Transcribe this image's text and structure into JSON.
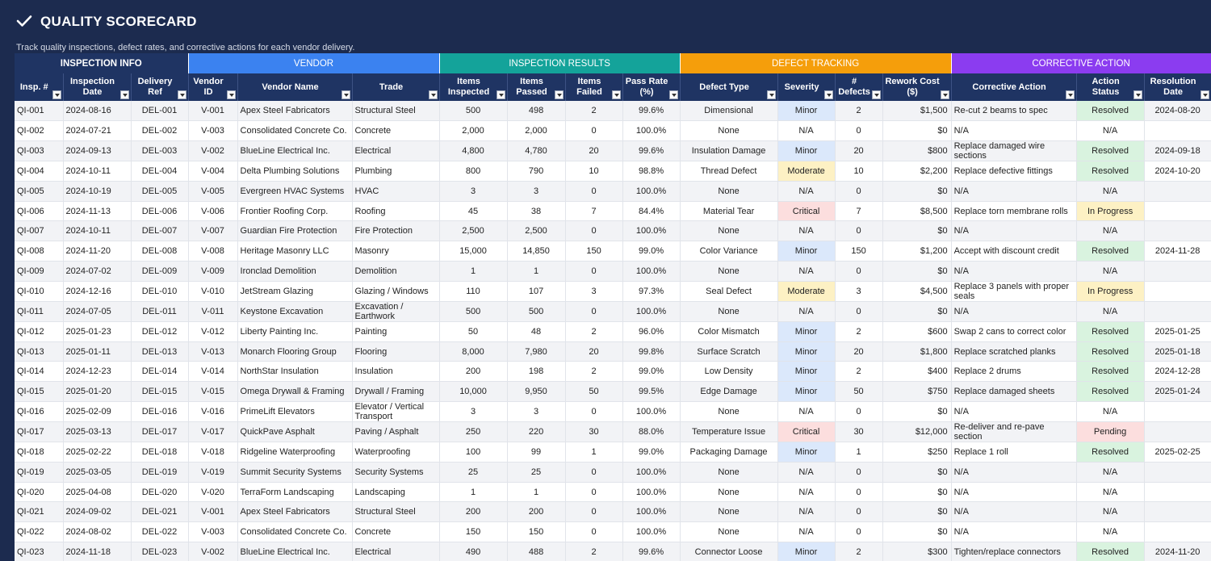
{
  "header": {
    "title": "QUALITY SCORECARD",
    "subtitle": "Track quality inspections, defect rates, and corrective actions for each vendor delivery."
  },
  "groups": [
    {
      "label": "INSPECTION INFO",
      "span": 3,
      "cls": "g-info"
    },
    {
      "label": "VENDOR",
      "span": 3,
      "cls": "g-vendor"
    },
    {
      "label": "INSPECTION RESULTS",
      "span": 4,
      "cls": "g-results"
    },
    {
      "label": "DEFECT TRACKING",
      "span": 4,
      "cls": "g-defect"
    },
    {
      "label": "CORRECTIVE ACTION",
      "span": 3,
      "cls": "g-action"
    }
  ],
  "columns": [
    {
      "key": "id",
      "label": "Insp. #",
      "align": "l"
    },
    {
      "key": "date",
      "label": "Inspection Date",
      "align": "l"
    },
    {
      "key": "del",
      "label": "Delivery Ref",
      "align": "c"
    },
    {
      "key": "vid",
      "label": "Vendor ID",
      "align": "c"
    },
    {
      "key": "vendor",
      "label": "Vendor Name",
      "align": "l"
    },
    {
      "key": "trade",
      "label": "Trade",
      "align": "l"
    },
    {
      "key": "insp",
      "label": "Items Inspected",
      "align": "c"
    },
    {
      "key": "passed",
      "label": "Items Passed",
      "align": "c"
    },
    {
      "key": "failed",
      "label": "Items Failed",
      "align": "c"
    },
    {
      "key": "rate",
      "label": "Pass Rate (%)",
      "align": "c"
    },
    {
      "key": "dtype",
      "label": "Defect Type",
      "align": "c"
    },
    {
      "key": "sev",
      "label": "Severity",
      "align": "c"
    },
    {
      "key": "ndef",
      "label": "# Defects",
      "align": "c"
    },
    {
      "key": "cost",
      "label": "Rework Cost ($)",
      "align": "r"
    },
    {
      "key": "action",
      "label": "Corrective Action",
      "align": "l"
    },
    {
      "key": "status",
      "label": "Action Status",
      "align": "c"
    },
    {
      "key": "rdate",
      "label": "Resolution Date",
      "align": "c"
    }
  ],
  "rows": [
    [
      "QI-001",
      "2024-08-16",
      "DEL-001",
      "V-001",
      "Apex Steel Fabricators",
      "Structural Steel",
      "500",
      "498",
      "2",
      "99.6%",
      "Dimensional",
      "Minor",
      "2",
      "$1,500",
      "Re-cut 2 beams to spec",
      "Resolved",
      "2024-08-20"
    ],
    [
      "QI-002",
      "2024-07-21",
      "DEL-002",
      "V-003",
      "Consolidated Concrete Co.",
      "Concrete",
      "2,000",
      "2,000",
      "0",
      "100.0%",
      "None",
      "N/A",
      "0",
      "$0",
      "N/A",
      "N/A",
      ""
    ],
    [
      "QI-003",
      "2024-09-13",
      "DEL-003",
      "V-002",
      "BlueLine Electrical Inc.",
      "Electrical",
      "4,800",
      "4,780",
      "20",
      "99.6%",
      "Insulation Damage",
      "Minor",
      "20",
      "$800",
      "Replace damaged wire sections",
      "Resolved",
      "2024-09-18"
    ],
    [
      "QI-004",
      "2024-10-11",
      "DEL-004",
      "V-004",
      "Delta Plumbing Solutions",
      "Plumbing",
      "800",
      "790",
      "10",
      "98.8%",
      "Thread Defect",
      "Moderate",
      "10",
      "$2,200",
      "Replace defective fittings",
      "Resolved",
      "2024-10-20"
    ],
    [
      "QI-005",
      "2024-10-19",
      "DEL-005",
      "V-005",
      "Evergreen HVAC Systems",
      "HVAC",
      "3",
      "3",
      "0",
      "100.0%",
      "None",
      "N/A",
      "0",
      "$0",
      "N/A",
      "N/A",
      ""
    ],
    [
      "QI-006",
      "2024-11-13",
      "DEL-006",
      "V-006",
      "Frontier Roofing Corp.",
      "Roofing",
      "45",
      "38",
      "7",
      "84.4%",
      "Material Tear",
      "Critical",
      "7",
      "$8,500",
      "Replace torn membrane rolls",
      "In Progress",
      ""
    ],
    [
      "QI-007",
      "2024-10-11",
      "DEL-007",
      "V-007",
      "Guardian Fire Protection",
      "Fire Protection",
      "2,500",
      "2,500",
      "0",
      "100.0%",
      "None",
      "N/A",
      "0",
      "$0",
      "N/A",
      "N/A",
      ""
    ],
    [
      "QI-008",
      "2024-11-20",
      "DEL-008",
      "V-008",
      "Heritage Masonry LLC",
      "Masonry",
      "15,000",
      "14,850",
      "150",
      "99.0%",
      "Color Variance",
      "Minor",
      "150",
      "$1,200",
      "Accept with discount credit",
      "Resolved",
      "2024-11-28"
    ],
    [
      "QI-009",
      "2024-07-02",
      "DEL-009",
      "V-009",
      "Ironclad Demolition",
      "Demolition",
      "1",
      "1",
      "0",
      "100.0%",
      "None",
      "N/A",
      "0",
      "$0",
      "N/A",
      "N/A",
      ""
    ],
    [
      "QI-010",
      "2024-12-16",
      "DEL-010",
      "V-010",
      "JetStream Glazing",
      "Glazing / Windows",
      "110",
      "107",
      "3",
      "97.3%",
      "Seal Defect",
      "Moderate",
      "3",
      "$4,500",
      "Replace 3 panels with proper seals",
      "In Progress",
      ""
    ],
    [
      "QI-011",
      "2024-07-05",
      "DEL-011",
      "V-011",
      "Keystone Excavation",
      "Excavation / Earthwork",
      "500",
      "500",
      "0",
      "100.0%",
      "None",
      "N/A",
      "0",
      "$0",
      "N/A",
      "N/A",
      ""
    ],
    [
      "QI-012",
      "2025-01-23",
      "DEL-012",
      "V-012",
      "Liberty Painting Inc.",
      "Painting",
      "50",
      "48",
      "2",
      "96.0%",
      "Color Mismatch",
      "Minor",
      "2",
      "$600",
      "Swap 2 cans to correct color",
      "Resolved",
      "2025-01-25"
    ],
    [
      "QI-013",
      "2025-01-11",
      "DEL-013",
      "V-013",
      "Monarch Flooring Group",
      "Flooring",
      "8,000",
      "7,980",
      "20",
      "99.8%",
      "Surface Scratch",
      "Minor",
      "20",
      "$1,800",
      "Replace scratched planks",
      "Resolved",
      "2025-01-18"
    ],
    [
      "QI-014",
      "2024-12-23",
      "DEL-014",
      "V-014",
      "NorthStar Insulation",
      "Insulation",
      "200",
      "198",
      "2",
      "99.0%",
      "Low Density",
      "Minor",
      "2",
      "$400",
      "Replace 2 drums",
      "Resolved",
      "2024-12-28"
    ],
    [
      "QI-015",
      "2025-01-20",
      "DEL-015",
      "V-015",
      "Omega Drywall & Framing",
      "Drywall / Framing",
      "10,000",
      "9,950",
      "50",
      "99.5%",
      "Edge Damage",
      "Minor",
      "50",
      "$750",
      "Replace damaged sheets",
      "Resolved",
      "2025-01-24"
    ],
    [
      "QI-016",
      "2025-02-09",
      "DEL-016",
      "V-016",
      "PrimeLift Elevators",
      "Elevator / Vertical Transport",
      "3",
      "3",
      "0",
      "100.0%",
      "None",
      "N/A",
      "0",
      "$0",
      "N/A",
      "N/A",
      ""
    ],
    [
      "QI-017",
      "2025-03-13",
      "DEL-017",
      "V-017",
      "QuickPave Asphalt",
      "Paving / Asphalt",
      "250",
      "220",
      "30",
      "88.0%",
      "Temperature Issue",
      "Critical",
      "30",
      "$12,000",
      "Re-deliver and re-pave section",
      "Pending",
      ""
    ],
    [
      "QI-018",
      "2025-02-22",
      "DEL-018",
      "V-018",
      "Ridgeline Waterproofing",
      "Waterproofing",
      "100",
      "99",
      "1",
      "99.0%",
      "Packaging Damage",
      "Minor",
      "1",
      "$250",
      "Replace 1 roll",
      "Resolved",
      "2025-02-25"
    ],
    [
      "QI-019",
      "2025-03-05",
      "DEL-019",
      "V-019",
      "Summit Security Systems",
      "Security Systems",
      "25",
      "25",
      "0",
      "100.0%",
      "None",
      "N/A",
      "0",
      "$0",
      "N/A",
      "N/A",
      ""
    ],
    [
      "QI-020",
      "2025-04-08",
      "DEL-020",
      "V-020",
      "TerraForm Landscaping",
      "Landscaping",
      "1",
      "1",
      "0",
      "100.0%",
      "None",
      "N/A",
      "0",
      "$0",
      "N/A",
      "N/A",
      ""
    ],
    [
      "QI-021",
      "2024-09-02",
      "DEL-021",
      "V-001",
      "Apex Steel Fabricators",
      "Structural Steel",
      "200",
      "200",
      "0",
      "100.0%",
      "None",
      "N/A",
      "0",
      "$0",
      "N/A",
      "N/A",
      ""
    ],
    [
      "QI-022",
      "2024-08-02",
      "DEL-022",
      "V-003",
      "Consolidated Concrete Co.",
      "Concrete",
      "150",
      "150",
      "0",
      "100.0%",
      "None",
      "N/A",
      "0",
      "$0",
      "N/A",
      "N/A",
      ""
    ],
    [
      "QI-023",
      "2024-11-18",
      "DEL-023",
      "V-002",
      "BlueLine Electrical Inc.",
      "Electrical",
      "490",
      "488",
      "2",
      "99.6%",
      "Connector Loose",
      "Minor",
      "2",
      "$300",
      "Tighten/replace connectors",
      "Resolved",
      "2024-11-20"
    ]
  ],
  "colors": {
    "header_bg": "#1c2b4f",
    "info": "#1f3463",
    "vendor": "#3b82f0",
    "results": "#14a39a",
    "defect": "#f59e0b",
    "action": "#8b3cf0"
  },
  "icons": {
    "title_icon": "check-icon",
    "filter": "filter-dropdown-icon"
  }
}
